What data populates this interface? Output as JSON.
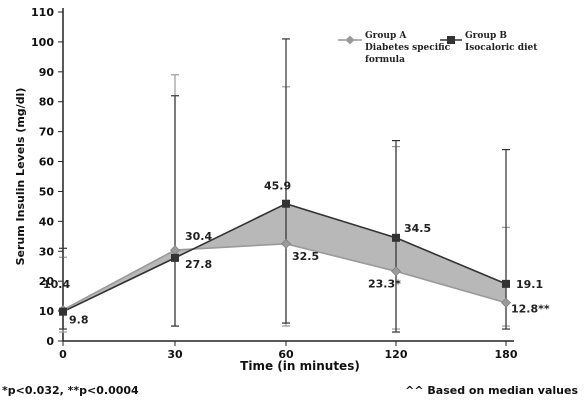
{
  "chart_data": {
    "type": "line",
    "xlabel": "Time (in minutes)",
    "ylabel": "Serum Insulin Levels (mg/dl)",
    "x": [
      0,
      30,
      60,
      120,
      180
    ],
    "xticks": [
      "0",
      "30",
      "60",
      "120",
      "180"
    ],
    "ylim": [
      0,
      110
    ],
    "yticks": [
      0,
      10,
      20,
      30,
      40,
      50,
      60,
      70,
      80,
      90,
      100,
      110
    ],
    "grid": false,
    "legend_position": "top-right",
    "shaded_between_series": true,
    "series": [
      {
        "name": "Group A Diabetes specific formula",
        "legend_lines": [
          "Group A",
          "Diabetes specific",
          "formula"
        ],
        "marker": "diamond",
        "values": [
          10.4,
          30.4,
          32.5,
          23.3,
          12.8
        ],
        "error_bars": [
          [
            3,
            28
          ],
          [
            5,
            89
          ],
          [
            5,
            85
          ],
          [
            4,
            65
          ],
          [
            5,
            38
          ]
        ],
        "labels": [
          "10.4",
          "30.4",
          "32.5",
          "23.3*",
          "12.8**"
        ]
      },
      {
        "name": "Group B Isocaloric diet",
        "legend_lines": [
          "Group B",
          "Isocaloric diet"
        ],
        "marker": "square",
        "values": [
          9.8,
          27.8,
          45.9,
          34.5,
          19.1
        ],
        "error_bars": [
          [
            4,
            31
          ],
          [
            5,
            82
          ],
          [
            6,
            101
          ],
          [
            3,
            67
          ],
          [
            4,
            64
          ]
        ],
        "labels": [
          "9.8",
          "27.8",
          "45.9",
          "34.5",
          "19.1"
        ]
      }
    ]
  },
  "footnotes": {
    "left": "*p<0.032, **p<0.0004",
    "right": "^^ Based on median values"
  },
  "colors": {
    "axis": "#222222",
    "series_a": "#9a9a9a",
    "series_b": "#333333",
    "shade": "#b8b8b8"
  }
}
